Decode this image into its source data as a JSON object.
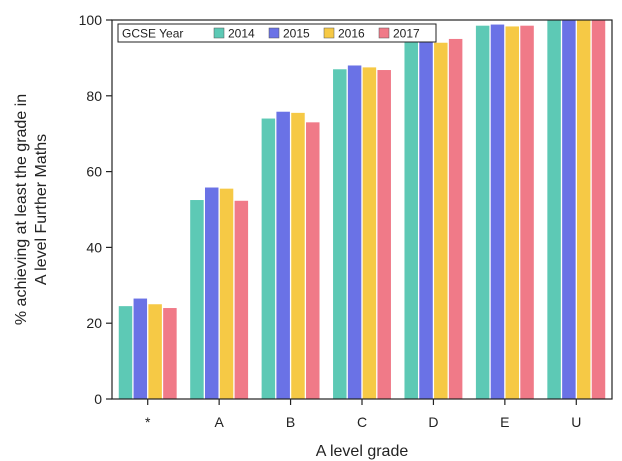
{
  "chart_data": {
    "type": "bar",
    "xlabel": "A level grade",
    "ylabel_lines": [
      "% achieving at least the grade in",
      "A level Further Maths"
    ],
    "ylim": [
      0,
      100
    ],
    "yticks": [
      0,
      20,
      40,
      60,
      80,
      100
    ],
    "categories": [
      "*",
      "A",
      "B",
      "C",
      "D",
      "E",
      "U"
    ],
    "legend_title": "GCSE Year",
    "legend_position": "top-left",
    "series": [
      {
        "name": "2014",
        "color": "#5dc9b5",
        "values": [
          24.5,
          52.5,
          74.0,
          87.0,
          95.0,
          98.5,
          100
        ]
      },
      {
        "name": "2015",
        "color": "#6a72e6",
        "values": [
          26.5,
          55.8,
          75.8,
          88.0,
          95.5,
          98.8,
          100
        ]
      },
      {
        "name": "2016",
        "color": "#f6c945",
        "values": [
          25.0,
          55.5,
          75.5,
          87.5,
          94.0,
          98.3,
          100
        ]
      },
      {
        "name": "2017",
        "color": "#f07a88",
        "values": [
          24.0,
          52.3,
          73.0,
          86.8,
          95.0,
          98.5,
          100
        ]
      }
    ],
    "grid": false
  }
}
